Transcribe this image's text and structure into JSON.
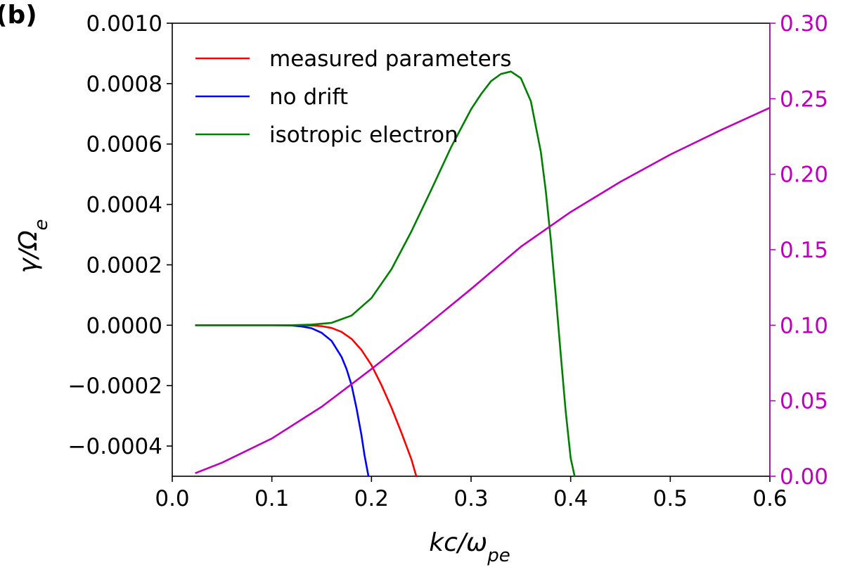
{
  "panel_label": "(b)",
  "chart_data": {
    "type": "line",
    "xlabel": "kc/ω_pe",
    "ylabel": "γ/Ω_e",
    "xlim": [
      0.0,
      0.6
    ],
    "ylim": [
      -0.0005,
      0.001
    ],
    "y2lim": [
      0.0,
      0.3
    ],
    "x_ticks": [
      "0.0",
      "0.1",
      "0.2",
      "0.3",
      "0.4",
      "0.5",
      "0.6"
    ],
    "y_ticks": [
      "−0.0004",
      "−0.0002",
      "0.0000",
      "0.0002",
      "0.0004",
      "0.0006",
      "0.0008",
      "0.0010"
    ],
    "y2_ticks": [
      "0.00",
      "0.05",
      "0.10",
      "0.15",
      "0.20",
      "0.25",
      "0.30"
    ],
    "y2_color": "#bf00bf",
    "grid": false,
    "legend_position": "top-left",
    "series": [
      {
        "name": "measured parameters",
        "color": "#ff0000",
        "axis": "left",
        "x": [
          0.023,
          0.05,
          0.08,
          0.1,
          0.12,
          0.14,
          0.15,
          0.16,
          0.17,
          0.18,
          0.19,
          0.2,
          0.21,
          0.22,
          0.23,
          0.24,
          0.245
        ],
        "y": [
          0.0,
          0.0,
          0.0,
          0.0,
          0.0,
          -1e-06,
          -3e-06,
          -9e-06,
          -2.2e-05,
          -4.5e-05,
          -8.2e-05,
          -0.000132,
          -0.000198,
          -0.000272,
          -0.000355,
          -0.000443,
          -0.0005
        ]
      },
      {
        "name": "no drift",
        "color": "#0000ff",
        "axis": "left",
        "x": [
          0.023,
          0.05,
          0.08,
          0.1,
          0.12,
          0.13,
          0.14,
          0.15,
          0.16,
          0.17,
          0.175,
          0.18,
          0.185,
          0.19,
          0.193,
          0.197
        ],
        "y": [
          0.0,
          0.0,
          0.0,
          0.0,
          -1e-06,
          -4e-06,
          -1e-05,
          -2.5e-05,
          -5.2e-05,
          -0.000105,
          -0.000145,
          -0.000198,
          -0.000275,
          -0.000365,
          -0.00043,
          -0.0005
        ]
      },
      {
        "name": "isotropic electron",
        "color": "#008000",
        "axis": "left",
        "x": [
          0.023,
          0.05,
          0.08,
          0.1,
          0.12,
          0.14,
          0.16,
          0.18,
          0.2,
          0.22,
          0.24,
          0.26,
          0.28,
          0.3,
          0.31,
          0.32,
          0.33,
          0.34,
          0.35,
          0.36,
          0.37,
          0.375,
          0.38,
          0.385,
          0.39,
          0.395,
          0.4,
          0.404
        ],
        "y": [
          0.0,
          0.0,
          0.0,
          0.0,
          0.0,
          2e-06,
          8e-06,
          3.2e-05,
          9e-05,
          0.000185,
          0.00031,
          0.000448,
          0.00059,
          0.000715,
          0.000765,
          0.000808,
          0.000832,
          0.00084,
          0.000818,
          0.000742,
          0.000575,
          0.000445,
          0.000285,
          0.0001,
          -9.5e-05,
          -0.000285,
          -0.00044,
          -0.0005
        ]
      },
      {
        "name": "",
        "color": "#bf00bf",
        "axis": "right",
        "x": [
          0.023,
          0.05,
          0.1,
          0.15,
          0.2,
          0.25,
          0.3,
          0.35,
          0.4,
          0.45,
          0.5,
          0.55,
          0.6
        ],
        "y": [
          0.002,
          0.009,
          0.025,
          0.046,
          0.071,
          0.097,
          0.124,
          0.152,
          0.175,
          0.195,
          0.213,
          0.229,
          0.244
        ]
      }
    ]
  }
}
